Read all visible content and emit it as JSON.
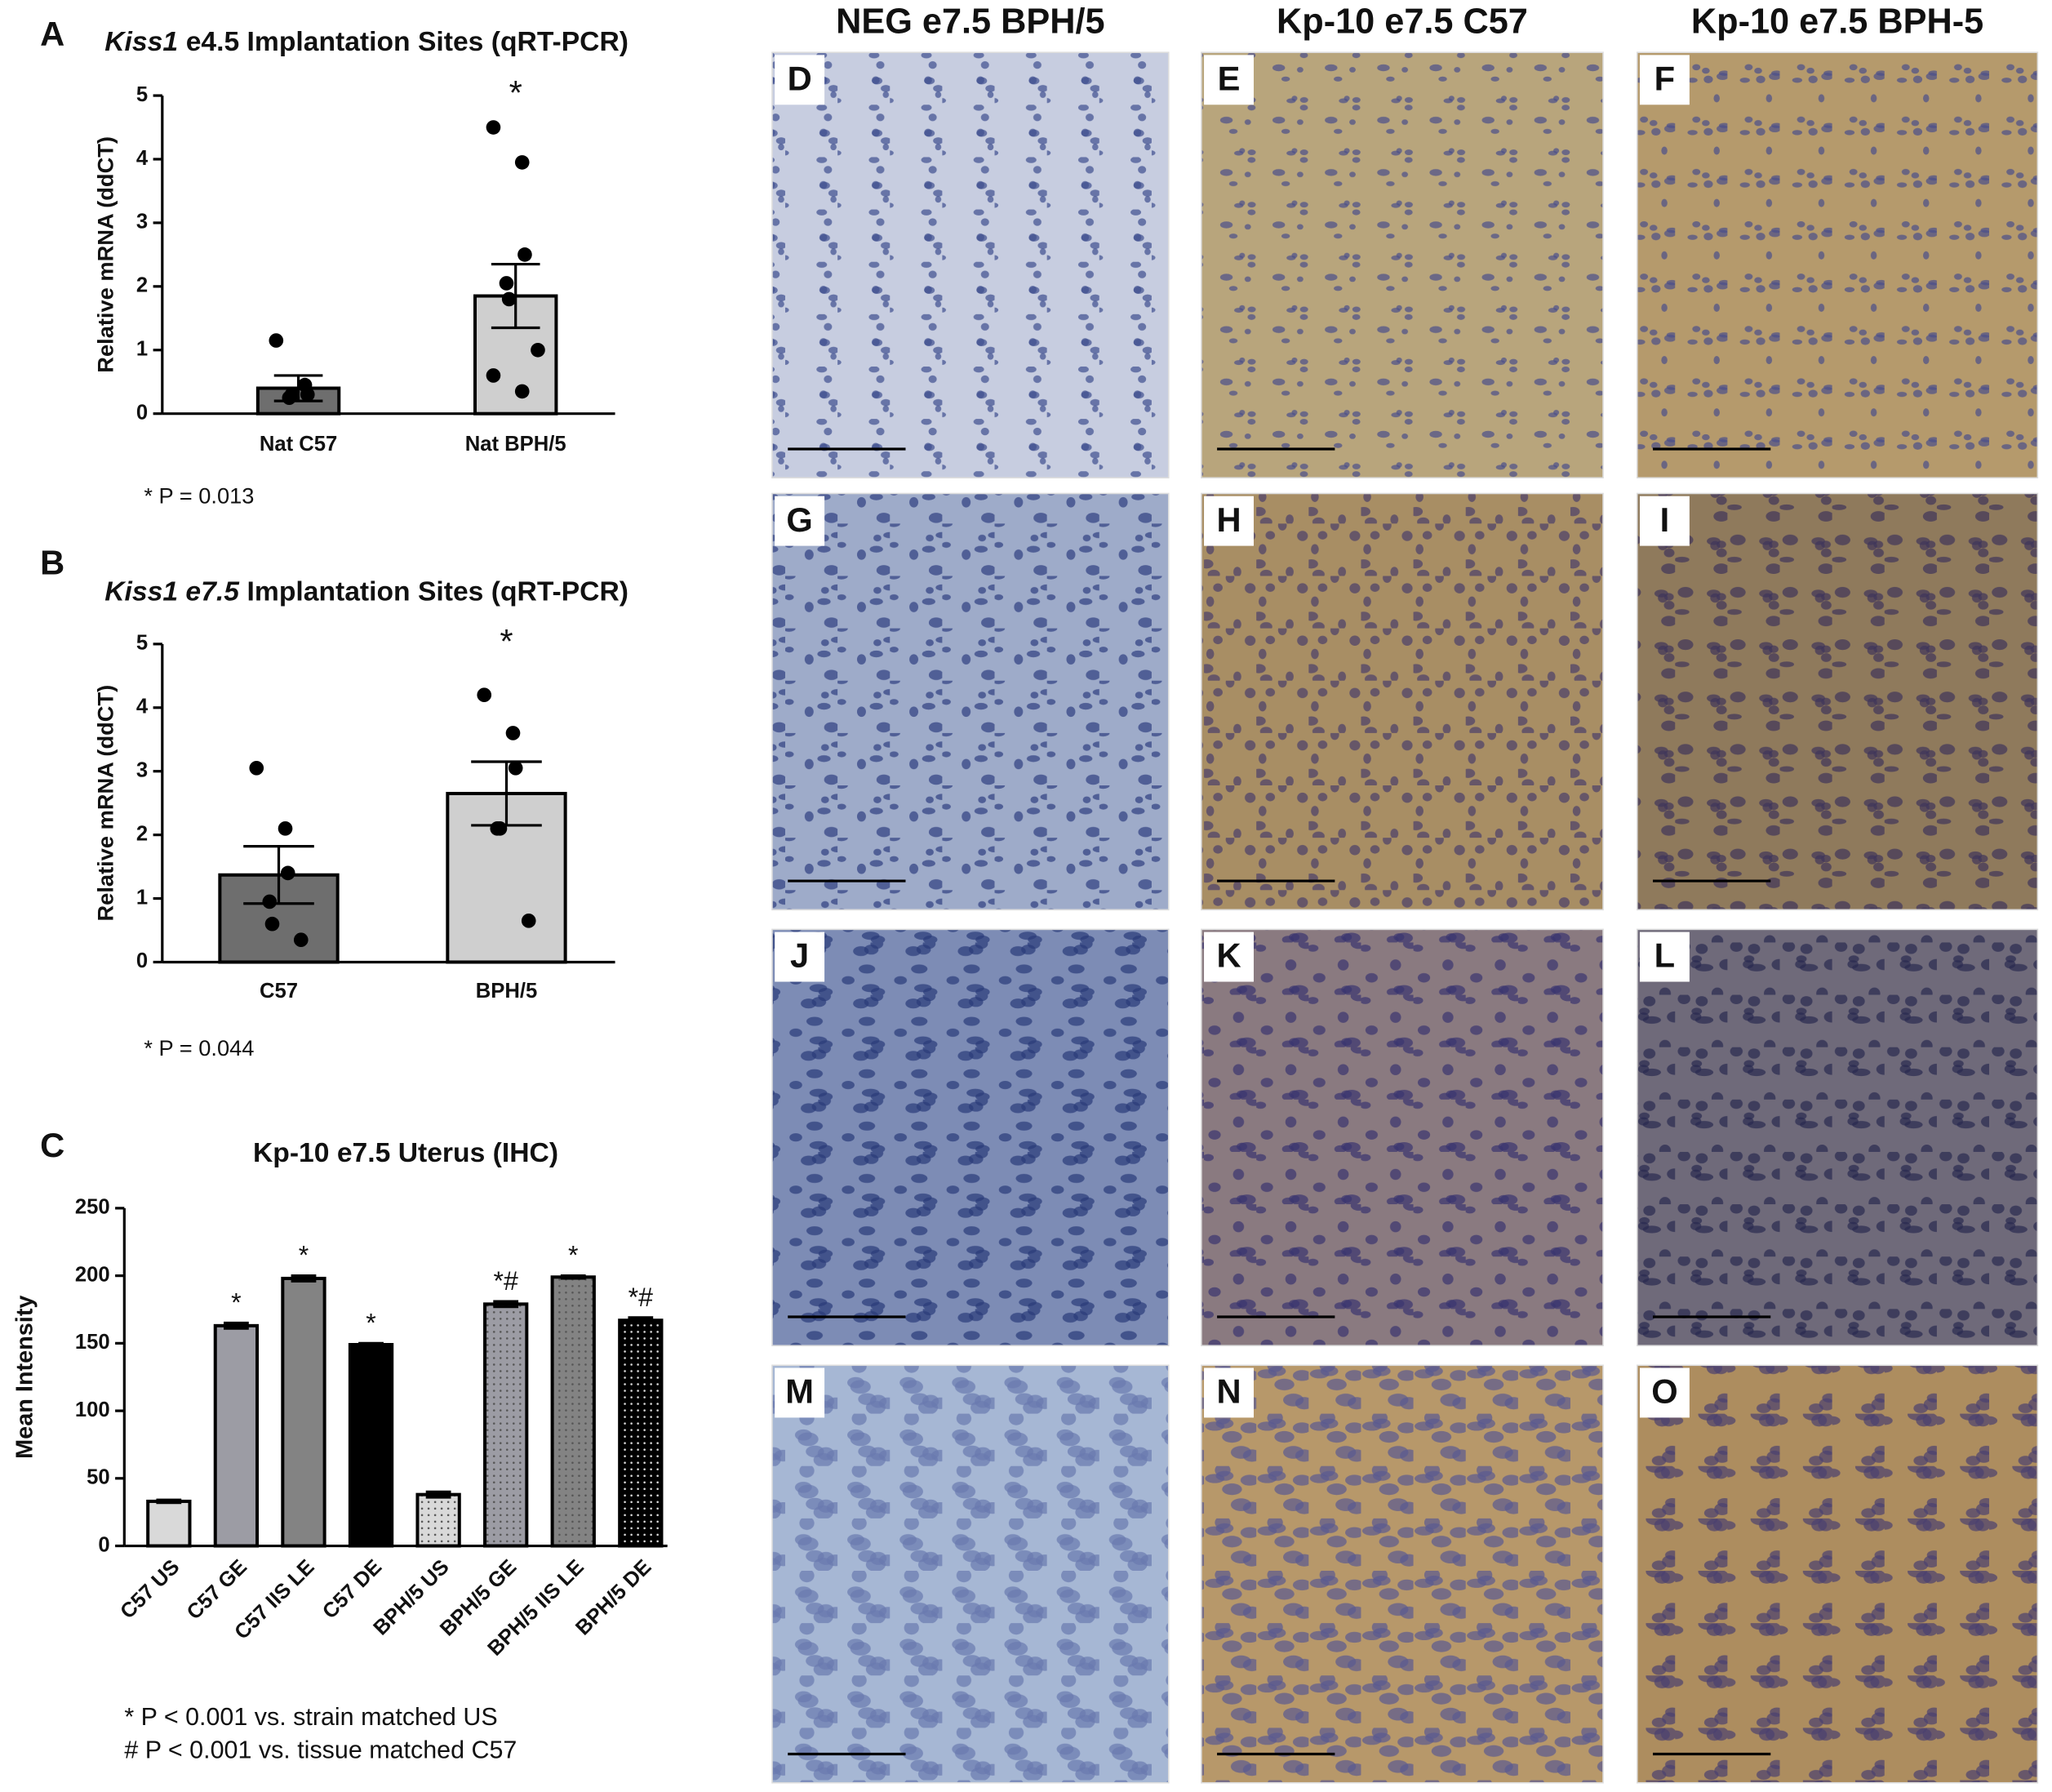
{
  "chart_data": [
    {
      "type": "bar",
      "panel": "A",
      "title_italic": "Kiss1",
      "title": "e4.5 Implantation Sites (qRT-PCR)",
      "ylabel": "Relative mRNA (ddCT)",
      "categories": [
        "Nat C57",
        "Nat BPH/5"
      ],
      "values": [
        0.4,
        1.85
      ],
      "errors": [
        0.2,
        0.5
      ],
      "colors": [
        "#6e6e6e",
        "#cfcfcf"
      ],
      "points": [
        [
          1.15,
          0.45,
          0.3,
          0.25,
          0.3
        ],
        [
          4.5,
          3.95,
          2.5,
          2.05,
          1.8,
          1.0,
          0.6,
          0.35
        ]
      ],
      "annotations": [
        null,
        "*"
      ],
      "ylim": [
        0,
        5
      ],
      "yticks": [
        0,
        1,
        2,
        3,
        4,
        5
      ],
      "notes": [
        "* P = 0.013"
      ]
    },
    {
      "type": "bar",
      "panel": "B",
      "title_italic": "Kiss1 e7.5",
      "title": "Implantation Sites (qRT-PCR)",
      "ylabel": "Relative mRNA (ddCT)",
      "categories": [
        "C57",
        "BPH/5"
      ],
      "values": [
        1.37,
        2.65
      ],
      "errors": [
        0.45,
        0.5
      ],
      "colors": [
        "#6e6e6e",
        "#cfcfcf"
      ],
      "points": [
        [
          3.05,
          2.1,
          1.4,
          0.95,
          0.6,
          0.35
        ],
        [
          4.2,
          3.6,
          3.05,
          2.1,
          2.1,
          0.65
        ]
      ],
      "annotations": [
        null,
        "*"
      ],
      "ylim": [
        0,
        5
      ],
      "yticks": [
        0,
        1,
        2,
        3,
        4,
        5
      ],
      "notes": [
        "* P = 0.044"
      ]
    },
    {
      "type": "bar",
      "panel": "C",
      "title": "Kp-10 e7.5 Uterus (IHC)",
      "ylabel": "Mean Intensity",
      "categories": [
        "C57 US",
        "C57 GE",
        "C57 IIS LE",
        "C57 DE",
        "BPH/5 US",
        "BPH/5 GE",
        "BPH/5 IIS LE",
        "BPH/5 DE"
      ],
      "values": [
        33,
        163,
        198,
        149,
        38,
        179,
        199,
        167
      ],
      "errors": [
        1,
        2,
        2,
        1,
        2,
        2,
        1,
        2
      ],
      "colors": [
        "#d9d9d9",
        "#9c9ca4",
        "#838383",
        "#000000",
        "#d9d9d9",
        "#9c9ca4",
        "#838383",
        "#000000"
      ],
      "dotted": [
        false,
        false,
        false,
        false,
        true,
        true,
        true,
        true
      ],
      "annotations": [
        null,
        "*",
        "*",
        "*",
        null,
        "*#",
        "*",
        "*#"
      ],
      "ylim": [
        0,
        250
      ],
      "yticks": [
        0,
        50,
        100,
        150,
        200,
        250
      ],
      "notes": [
        "* P < 0.001 vs. strain matched US",
        "# P < 0.001 vs. tissue matched C57"
      ]
    }
  ],
  "micrographs": {
    "columns": [
      "NEG e7.5 BPH/5",
      "Kp-10 e7.5 C57",
      "Kp-10 e7.5 BPH-5"
    ],
    "panels": [
      "D",
      "E",
      "F",
      "G",
      "H",
      "I",
      "J",
      "K",
      "L",
      "M",
      "N",
      "O"
    ]
  }
}
